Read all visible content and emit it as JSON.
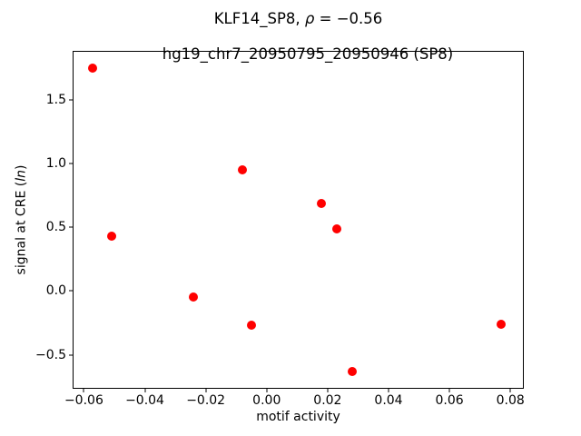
{
  "chart_data": {
    "type": "scatter",
    "title_parts": [
      {
        "text": "KLF14_SP8, ",
        "style": "normal"
      },
      {
        "text": "ρ",
        "style": "italic"
      },
      {
        "text": " = −0.56",
        "style": "normal"
      }
    ],
    "subtitle": "hg19_chr7_20950795_20950946 (SP8)",
    "xlabel": "motif activity",
    "ylabel_parts": [
      {
        "text": "signal at CRE (",
        "style": "normal"
      },
      {
        "text": "ln",
        "style": "italic"
      },
      {
        "text": ")",
        "style": "normal"
      }
    ],
    "x": [
      -0.057,
      -0.051,
      -0.024,
      -0.008,
      -0.005,
      0.018,
      0.023,
      0.028,
      0.077
    ],
    "y": [
      1.75,
      0.43,
      -0.05,
      0.95,
      -0.27,
      0.69,
      0.49,
      -0.63,
      -0.26
    ],
    "xlim": [
      -0.0634,
      0.0841
    ],
    "ylim": [
      -0.76,
      1.88
    ],
    "x_ticks": [
      -0.06,
      -0.04,
      -0.02,
      0.0,
      0.02,
      0.04,
      0.06,
      0.08
    ],
    "x_tick_labels": [
      "−0.06",
      "−0.04",
      "−0.02",
      "0.00",
      "0.02",
      "0.04",
      "0.06",
      "0.08"
    ],
    "y_ticks": [
      -0.5,
      0.0,
      0.5,
      1.0,
      1.5
    ],
    "y_tick_labels": [
      "−0.5",
      "0.0",
      "0.5",
      "1.0",
      "1.5"
    ],
    "marker_color": "#ff0000",
    "axis_color": "#000000",
    "grid": false,
    "legend": null
  }
}
